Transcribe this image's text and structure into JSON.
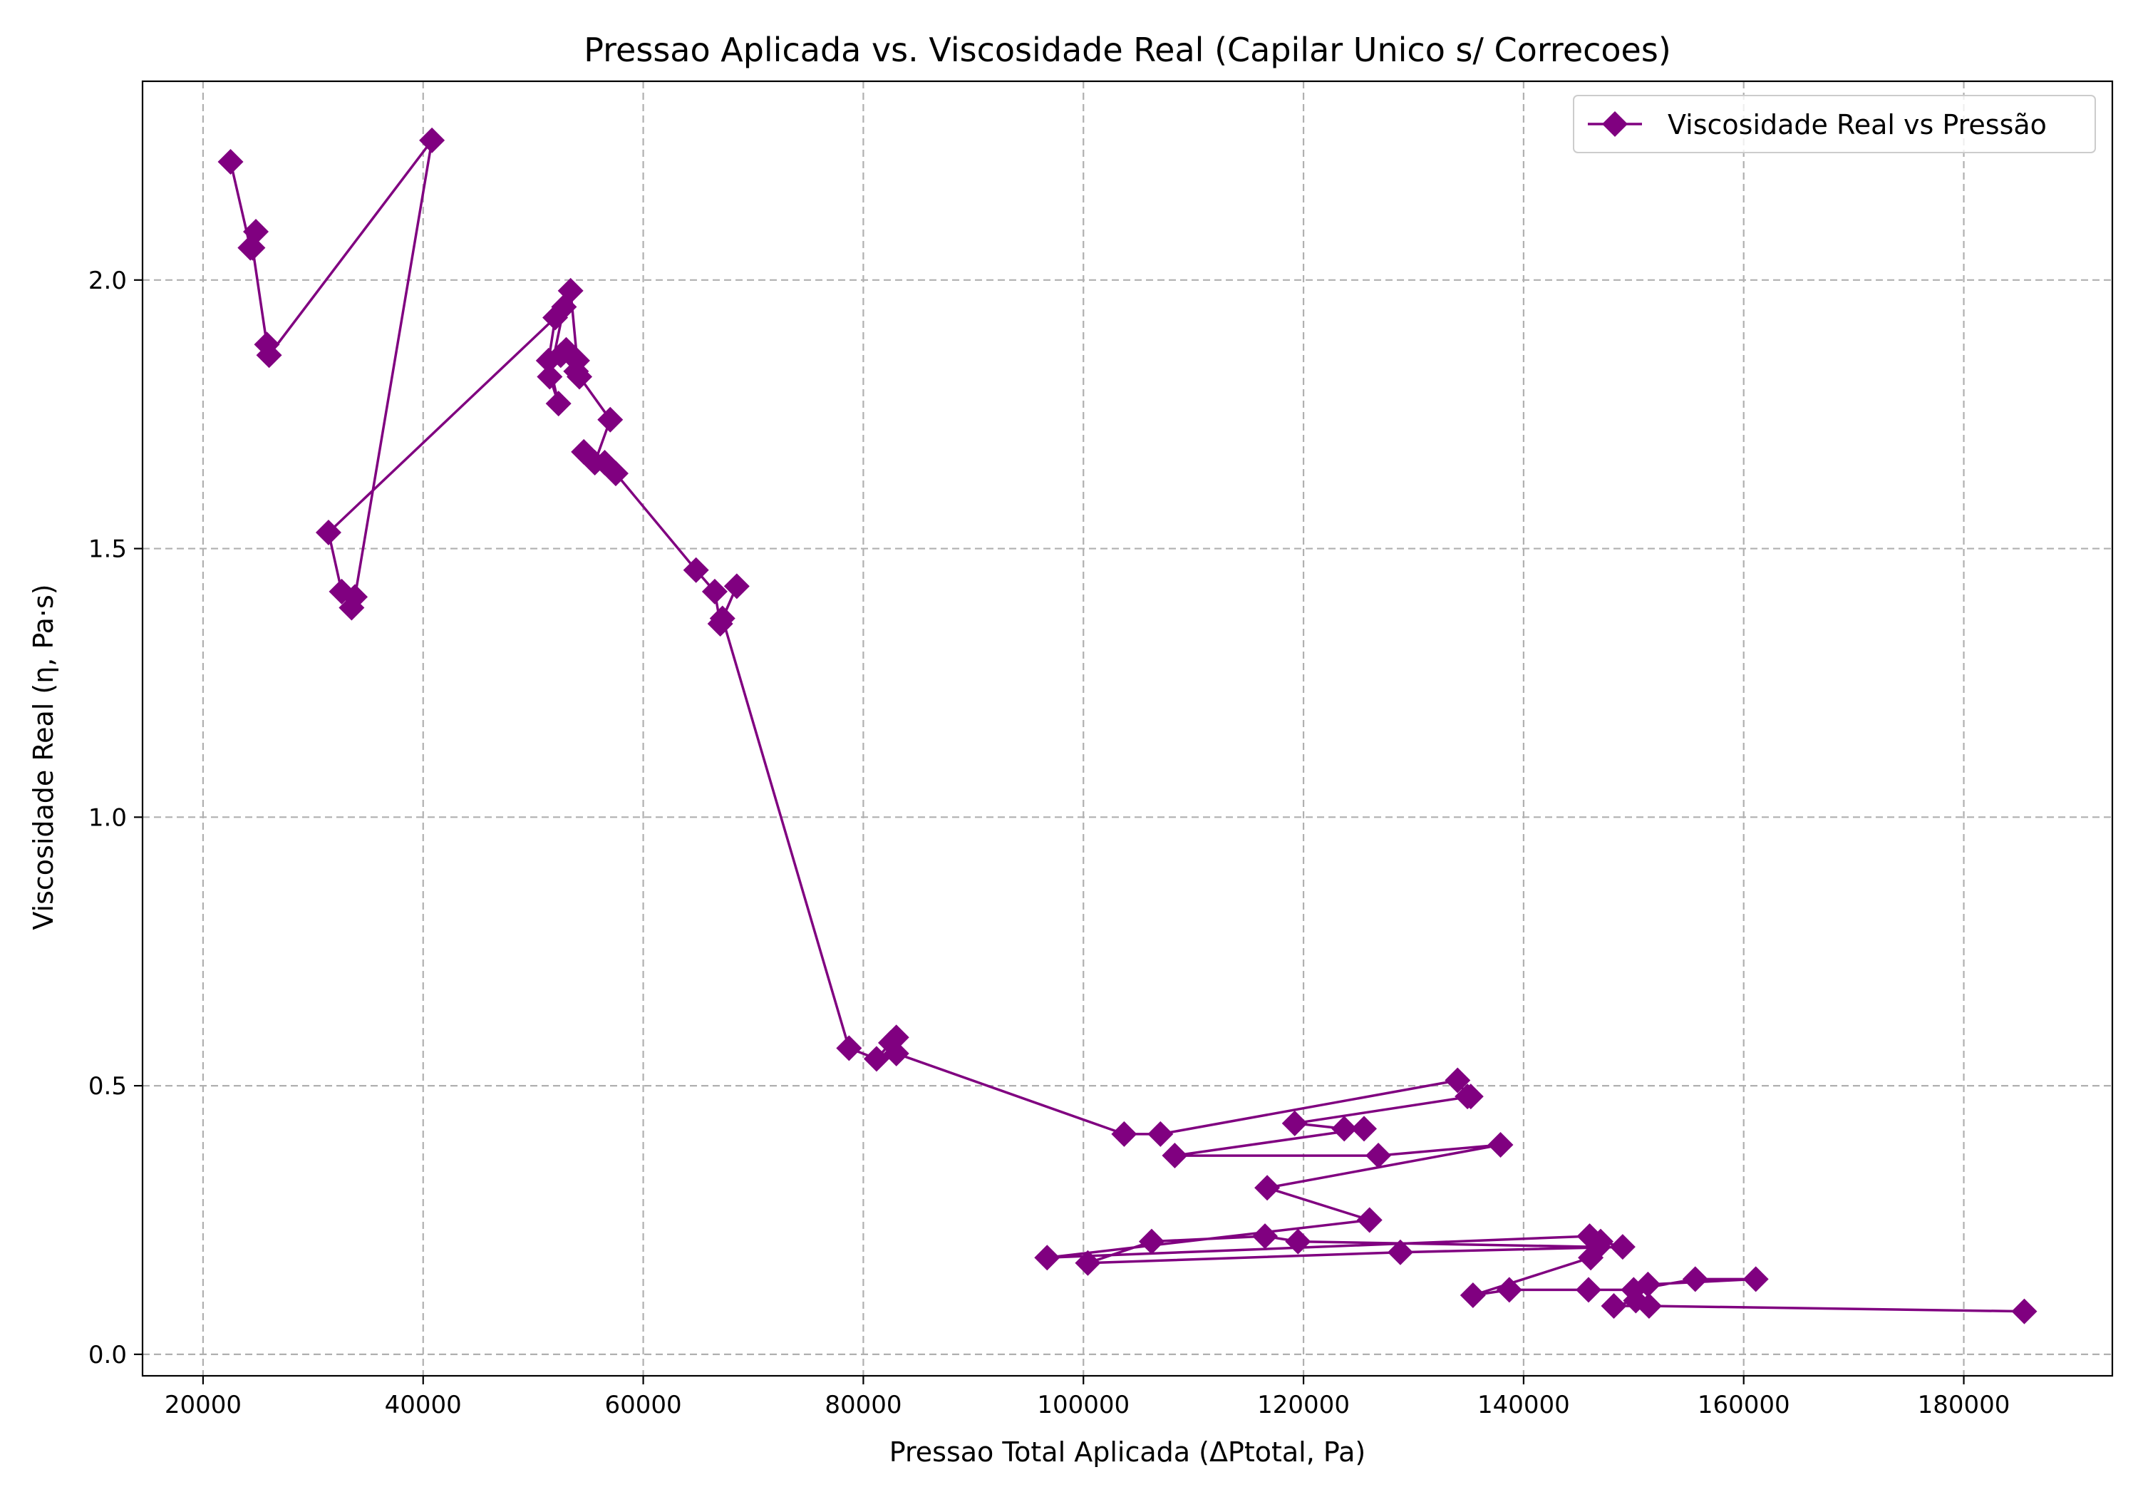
{
  "chart_data": {
    "type": "line",
    "title": "Pressao Aplicada vs. Viscosidade Real (Capilar Unico s/ Correcoes)",
    "xlabel": "Pressao Total Aplicada (ΔPtotal, Pa)",
    "ylabel": "Viscosidade Real (η, Pa·s)",
    "xlim": [
      14500,
      193500
    ],
    "ylim": [
      -0.04,
      2.37
    ],
    "xticks": [
      20000,
      40000,
      60000,
      80000,
      100000,
      120000,
      140000,
      160000,
      180000
    ],
    "xtick_labels": [
      "20000",
      "40000",
      "60000",
      "80000",
      "100000",
      "120000",
      "140000",
      "160000",
      "180000"
    ],
    "yticks": [
      0.0,
      0.5,
      1.0,
      1.5,
      2.0
    ],
    "ytick_labels": [
      "0.0",
      "0.5",
      "1.0",
      "1.5",
      "2.0"
    ],
    "grid": true,
    "legend_position": "top-right",
    "series": [
      {
        "name": "Viscosidade Real vs Pressão",
        "color": "#800080",
        "marker": "diamond",
        "x": [
          22500,
          24300,
          24800,
          24500,
          25800,
          26000,
          40800,
          33800,
          33500,
          32600,
          31400,
          52000,
          51400,
          52300,
          51500,
          52800,
          53400,
          54000,
          53900,
          52500,
          53000,
          54200,
          57000,
          55600,
          54600,
          56500,
          57500,
          64800,
          66500,
          67000,
          68500,
          67200,
          78700,
          81200,
          82500,
          83000,
          83000,
          103700,
          107000,
          134000,
          134900,
          135200,
          119200,
          123700,
          125500,
          108300,
          126800,
          137900,
          116700,
          126000,
          96700,
          146000,
          147000,
          149000,
          128800,
          100400,
          106200,
          116500,
          119500,
          146800,
          146100,
          135400,
          138700,
          145900,
          150000,
          155600,
          161100,
          151300,
          150200,
          148200,
          151400,
          185500
        ],
        "y": [
          2.22,
          2.06,
          2.09,
          2.06,
          1.88,
          1.86,
          2.26,
          1.41,
          1.39,
          1.42,
          1.53,
          1.93,
          1.85,
          1.77,
          1.82,
          1.95,
          1.98,
          1.85,
          1.83,
          1.86,
          1.87,
          1.82,
          1.74,
          1.66,
          1.68,
          1.66,
          1.64,
          1.46,
          1.42,
          1.36,
          1.43,
          1.37,
          0.57,
          0.55,
          0.58,
          0.59,
          0.56,
          0.41,
          0.41,
          0.51,
          0.48,
          0.48,
          0.43,
          0.42,
          0.42,
          0.37,
          0.37,
          0.39,
          0.31,
          0.25,
          0.18,
          0.22,
          0.21,
          0.2,
          0.19,
          0.17,
          0.21,
          0.22,
          0.21,
          0.2,
          0.18,
          0.11,
          0.12,
          0.12,
          0.12,
          0.14,
          0.14,
          0.13,
          0.1,
          0.09,
          0.09,
          0.08
        ]
      }
    ]
  }
}
